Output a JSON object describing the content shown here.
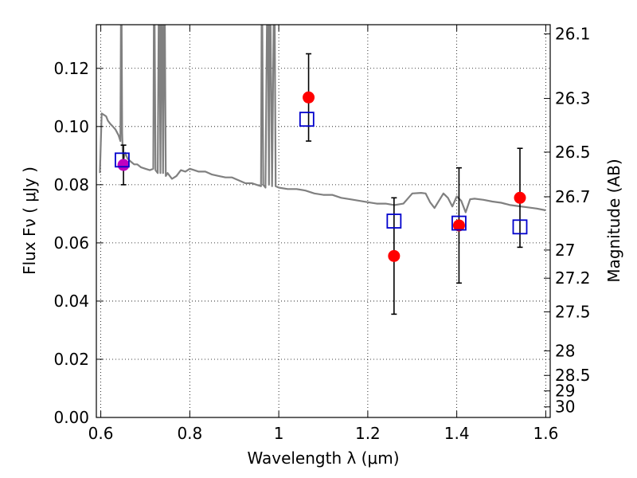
{
  "chart_data": {
    "type": "scatter",
    "xlabel": "Wavelength  λ (μm)",
    "ylabel": "Flux  Fν  ( μJy )",
    "y2label": "Magnitude (AB)",
    "xlim": [
      0.59,
      1.61
    ],
    "ylim": [
      0.0,
      0.135
    ],
    "grid": true,
    "xticks": [
      {
        "value": 0.6,
        "label": "0.6"
      },
      {
        "value": 0.8,
        "label": "0.8"
      },
      {
        "value": 1.0,
        "label": "1"
      },
      {
        "value": 1.2,
        "label": "1.2"
      },
      {
        "value": 1.4,
        "label": "1.4"
      },
      {
        "value": 1.6,
        "label": "1.6"
      }
    ],
    "yticks": [
      {
        "value": 0.0,
        "label": "0.00"
      },
      {
        "value": 0.02,
        "label": "0.02"
      },
      {
        "value": 0.04,
        "label": "0.04"
      },
      {
        "value": 0.06,
        "label": "0.06"
      },
      {
        "value": 0.08,
        "label": "0.08"
      },
      {
        "value": 0.1,
        "label": "0.10"
      },
      {
        "value": 0.12,
        "label": "0.12"
      }
    ],
    "y2ticks": [
      {
        "value": 26.1,
        "label": "26.1"
      },
      {
        "value": 26.3,
        "label": "26.3"
      },
      {
        "value": 26.5,
        "label": "26.5"
      },
      {
        "value": 26.7,
        "label": "26.7"
      },
      {
        "value": 27.0,
        "label": "27"
      },
      {
        "value": 27.2,
        "label": "27.2"
      },
      {
        "value": 27.5,
        "label": "27.5"
      },
      {
        "value": 28.0,
        "label": "28"
      },
      {
        "value": 28.5,
        "label": "28.5"
      },
      {
        "value": 29.0,
        "label": "29"
      },
      {
        "value": 30.0,
        "label": "30"
      }
    ],
    "template_spectrum": {
      "color": "#808080",
      "points": [
        [
          0.598,
          0.084
        ],
        [
          0.602,
          0.1045
        ],
        [
          0.607,
          0.104
        ],
        [
          0.612,
          0.1035
        ],
        [
          0.616,
          0.102
        ],
        [
          0.621,
          0.101
        ],
        [
          0.627,
          0.1
        ],
        [
          0.633,
          0.099
        ],
        [
          0.64,
          0.097
        ],
        [
          0.644,
          0.095
        ],
        [
          0.646,
          0.16
        ],
        [
          0.648,
          0.098
        ],
        [
          0.65,
          0.088
        ],
        [
          0.655,
          0.091
        ],
        [
          0.66,
          0.089
        ],
        [
          0.667,
          0.088
        ],
        [
          0.675,
          0.087
        ],
        [
          0.682,
          0.087
        ],
        [
          0.69,
          0.086
        ],
        [
          0.7,
          0.0855
        ],
        [
          0.71,
          0.085
        ],
        [
          0.718,
          0.0855
        ],
        [
          0.72,
          0.16
        ],
        [
          0.723,
          0.085
        ],
        [
          0.728,
          0.084
        ],
        [
          0.731,
          0.16
        ],
        [
          0.734,
          0.084
        ],
        [
          0.737,
          0.16
        ],
        [
          0.74,
          0.084
        ],
        [
          0.743,
          0.16
        ],
        [
          0.746,
          0.083
        ],
        [
          0.75,
          0.084
        ],
        [
          0.76,
          0.082
        ],
        [
          0.77,
          0.083
        ],
        [
          0.78,
          0.085
        ],
        [
          0.79,
          0.0845
        ],
        [
          0.8,
          0.0855
        ],
        [
          0.81,
          0.085
        ],
        [
          0.82,
          0.0845
        ],
        [
          0.835,
          0.0845
        ],
        [
          0.85,
          0.0835
        ],
        [
          0.865,
          0.083
        ],
        [
          0.88,
          0.0825
        ],
        [
          0.895,
          0.0825
        ],
        [
          0.91,
          0.0815
        ],
        [
          0.925,
          0.0805
        ],
        [
          0.94,
          0.0805
        ],
        [
          0.95,
          0.08
        ],
        [
          0.96,
          0.0795
        ],
        [
          0.962,
          0.16
        ],
        [
          0.965,
          0.08
        ],
        [
          0.97,
          0.079
        ],
        [
          0.975,
          0.16
        ],
        [
          0.978,
          0.08
        ],
        [
          0.98,
          0.16
        ],
        [
          0.985,
          0.0795
        ],
        [
          0.99,
          0.16
        ],
        [
          0.993,
          0.0795
        ],
        [
          1.0,
          0.079
        ],
        [
          1.02,
          0.0785
        ],
        [
          1.04,
          0.0785
        ],
        [
          1.06,
          0.078
        ],
        [
          1.08,
          0.077
        ],
        [
          1.1,
          0.0765
        ],
        [
          1.12,
          0.0765
        ],
        [
          1.14,
          0.0755
        ],
        [
          1.16,
          0.075
        ],
        [
          1.18,
          0.0745
        ],
        [
          1.2,
          0.074
        ],
        [
          1.22,
          0.0735
        ],
        [
          1.24,
          0.0735
        ],
        [
          1.26,
          0.073
        ],
        [
          1.28,
          0.0735
        ],
        [
          1.3,
          0.077
        ],
        [
          1.32,
          0.0772
        ],
        [
          1.33,
          0.077
        ],
        [
          1.34,
          0.074
        ],
        [
          1.35,
          0.072
        ],
        [
          1.36,
          0.0745
        ],
        [
          1.37,
          0.077
        ],
        [
          1.38,
          0.0755
        ],
        [
          1.39,
          0.0725
        ],
        [
          1.4,
          0.076
        ],
        [
          1.41,
          0.0745
        ],
        [
          1.42,
          0.0705
        ],
        [
          1.43,
          0.075
        ],
        [
          1.44,
          0.0752
        ],
        [
          1.46,
          0.0748
        ],
        [
          1.48,
          0.0742
        ],
        [
          1.5,
          0.0738
        ],
        [
          1.52,
          0.073
        ],
        [
          1.54,
          0.0726
        ],
        [
          1.56,
          0.0722
        ],
        [
          1.58,
          0.0718
        ],
        [
          1.6,
          0.0712
        ]
      ]
    },
    "series": [
      {
        "kind": "observed",
        "marker": "filled-circle",
        "color": "#ff0000",
        "points": [
          {
            "x": 1.067,
            "y": 0.11,
            "err": 0.015
          },
          {
            "x": 1.259,
            "y": 0.0555,
            "err": 0.02
          },
          {
            "x": 1.405,
            "y": 0.066,
            "err": 0.0198
          },
          {
            "x": 1.542,
            "y": 0.0755,
            "err": 0.017
          }
        ]
      },
      {
        "kind": "observed-short",
        "marker": "filled-circle",
        "color": "#bf00bf",
        "points": [
          {
            "x": 0.651,
            "y": 0.0868,
            "err": 0.0068
          }
        ]
      },
      {
        "kind": "model-bandpass",
        "marker": "open-square",
        "color": "#0000cc",
        "points": [
          {
            "x": 0.648,
            "y": 0.0885
          },
          {
            "x": 1.063,
            "y": 0.1025
          },
          {
            "x": 1.259,
            "y": 0.0675
          },
          {
            "x": 1.405,
            "y": 0.0668
          },
          {
            "x": 1.542,
            "y": 0.0655
          }
        ]
      }
    ]
  }
}
